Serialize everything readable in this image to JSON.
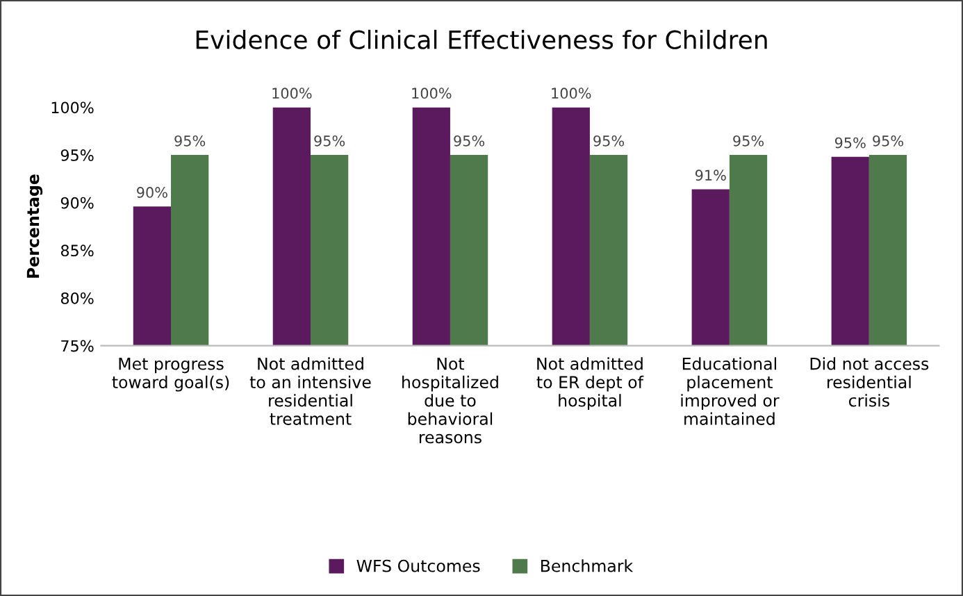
{
  "chart_data": {
    "type": "bar",
    "title": "Evidence of Clinical Effectiveness for Children",
    "ylabel": "Percentage",
    "categories": [
      "Met progress\ntoward goal(s)",
      "Not admitted\nto an intensive\nresidential\ntreatment",
      "Not\nhospitalized\ndue to\nbehavioral\nreasons",
      "Not admitted\nto ER dept of\nhospital",
      "Educational\nplacement\nimproved or\nmaintained",
      "Did not access\nresidential\ncrisis"
    ],
    "series": [
      {
        "name": "WFS Outcomes",
        "color": "#5c1a5e",
        "values": [
          89.6,
          100,
          100,
          100,
          91.4,
          94.8
        ],
        "value_labels": [
          "90%",
          "100%",
          "100%",
          "100%",
          "91%",
          "95%"
        ]
      },
      {
        "name": "Benchmark",
        "color": "#4f7a4b",
        "values": [
          95,
          95,
          95,
          95,
          95,
          95
        ],
        "value_labels": [
          "95%",
          "95%",
          "95%",
          "95%",
          "95%",
          "95%"
        ]
      }
    ],
    "ylim": [
      75,
      100
    ],
    "yticks": [
      {
        "value": 75,
        "label": "75%"
      },
      {
        "value": 80,
        "label": "80%"
      },
      {
        "value": 85,
        "label": "85%"
      },
      {
        "value": 90,
        "label": "90%"
      },
      {
        "value": 95,
        "label": "95%"
      },
      {
        "value": 100,
        "label": "100%"
      }
    ],
    "grid": false,
    "legend": "bottom"
  }
}
